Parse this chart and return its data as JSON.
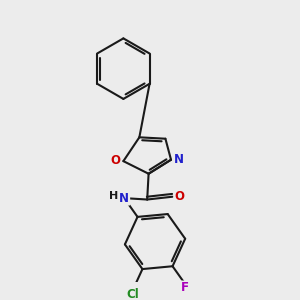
{
  "bg_color": "#ececec",
  "bond_color": "#1a1a1a",
  "atom_colors": {
    "N": "#2020cc",
    "O": "#cc0000",
    "Cl": "#228B22",
    "F": "#aa00bb",
    "H": "#1a1a1a",
    "C": "#1a1a1a"
  },
  "figsize": [
    3.0,
    3.0
  ],
  "dpi": 100,
  "lw": 1.5,
  "font_size": 8.5
}
